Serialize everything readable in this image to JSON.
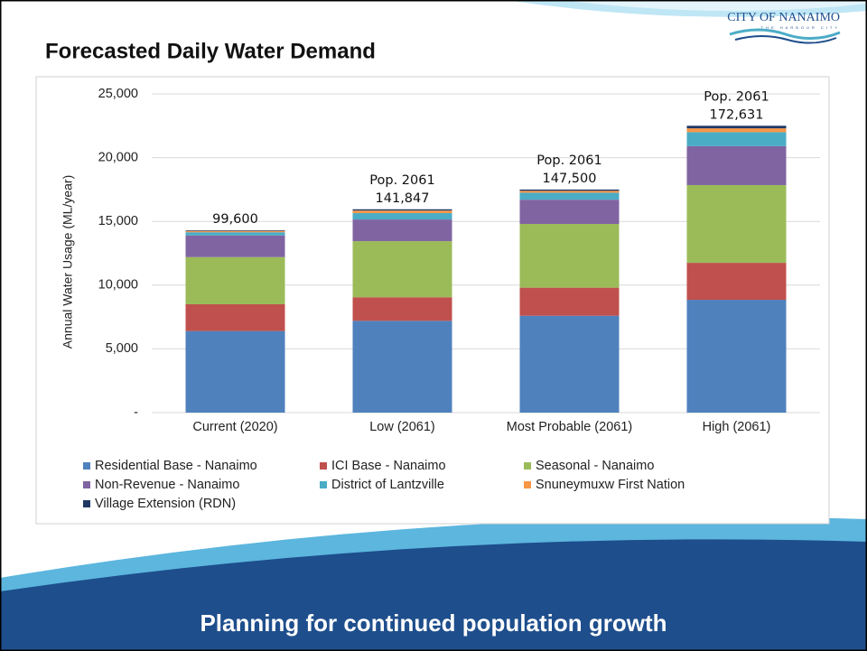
{
  "slide": {
    "title": "Forecasted Daily Water Demand",
    "footer": "Planning for continued population growth",
    "logo": {
      "name": "CITY OF NANAIMO",
      "tagline": "THE HARBOUR CITY"
    }
  },
  "chart_data": {
    "type": "stacked_bar",
    "y_label": "Annual Water Usage (ML/year)",
    "categories": [
      "Current (2020)",
      "Low (2061)",
      "Most Probable (2061)",
      "High (2061)"
    ],
    "annotations": [
      [
        "99,600"
      ],
      [
        "Pop. 2061",
        "141,847"
      ],
      [
        "Pop. 2061",
        "147,500"
      ],
      [
        "Pop. 2061",
        "172,631"
      ]
    ],
    "series": [
      {
        "name": "Residential Base - Nanaimo",
        "color": "#4f81bd",
        "values": [
          6400,
          7200,
          7600,
          8850
        ]
      },
      {
        "name": "ICI Base - Nanaimo",
        "color": "#c0504d",
        "values": [
          2100,
          1850,
          2200,
          2900
        ]
      },
      {
        "name": "Seasonal - Nanaimo",
        "color": "#9bbb59",
        "values": [
          3700,
          4400,
          5000,
          6100
        ]
      },
      {
        "name": "Non-Revenue - Nanaimo",
        "color": "#8064a2",
        "values": [
          1700,
          1700,
          1900,
          3050
        ]
      },
      {
        "name": "District of Lantzville",
        "color": "#4bacc6",
        "values": [
          250,
          500,
          550,
          1100
        ]
      },
      {
        "name": "Snuneymuxw First Nation",
        "color": "#f79646",
        "values": [
          100,
          200,
          150,
          300
        ]
      },
      {
        "name": "Village Extension (RDN)",
        "color": "#1f3864",
        "values": [
          50,
          100,
          100,
          200
        ]
      }
    ],
    "ylim": [
      0,
      25000
    ],
    "yticks": [
      {
        "value": 0,
        "label": "-"
      },
      {
        "value": 5000,
        "label": "5,000"
      },
      {
        "value": 10000,
        "label": "10,000"
      },
      {
        "value": 15000,
        "label": "15,000"
      },
      {
        "value": 20000,
        "label": "20,000"
      },
      {
        "value": 25000,
        "label": "25,000"
      }
    ],
    "grid": true
  }
}
